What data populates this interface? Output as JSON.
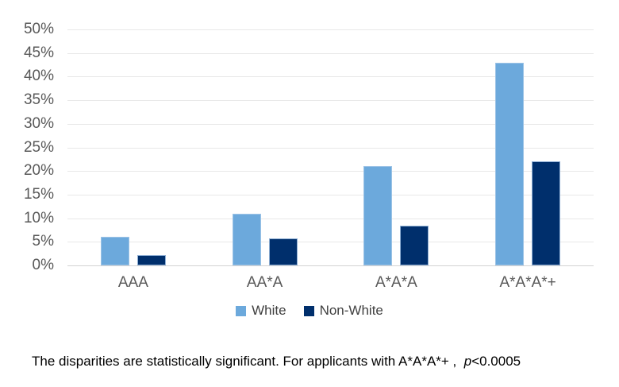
{
  "chart_data": {
    "type": "bar",
    "categories": [
      "AAA",
      "AA*A",
      "A*A*A",
      "A*A*A*+"
    ],
    "series": [
      {
        "name": "White",
        "color": "#6CA9DC",
        "border_color": "#9CC3E6",
        "values": [
          6,
          11,
          21,
          43
        ]
      },
      {
        "name": "Non-White",
        "color": "#002F6C",
        "border_color": "#8FAFD4",
        "values": [
          2.2,
          5.7,
          8.5,
          22
        ]
      }
    ],
    "ylim": [
      0,
      50
    ],
    "yticks": [
      0,
      5,
      10,
      15,
      20,
      25,
      30,
      35,
      40,
      45,
      50
    ],
    "ytick_suffix": "%",
    "grid": true,
    "legend_position": "bottom",
    "title": "",
    "xlabel": "",
    "ylabel": ""
  },
  "colors": {
    "background": "#FFFFFF",
    "axis_label": "#595959",
    "legend_text": "#404040",
    "gridline": "#E8E8E8",
    "baseline": "#D2D2D2"
  },
  "footnote": {
    "text_before_p": "The disparities are statistically significant. For applicants with A*A*A*+ ,  ",
    "p": "p",
    "after_p": "<0.0005"
  }
}
